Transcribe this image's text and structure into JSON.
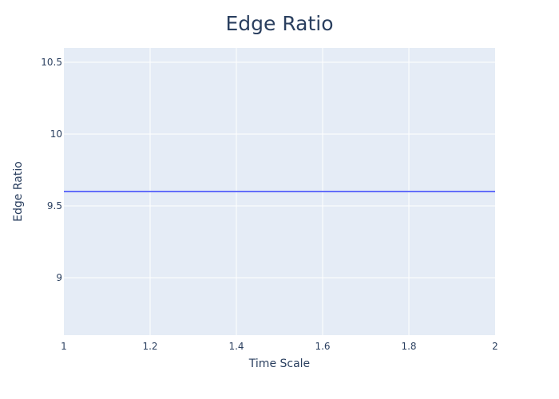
{
  "chart_data": {
    "type": "line",
    "title": "Edge Ratio",
    "xlabel": "Time Scale",
    "ylabel": "Edge Ratio",
    "xlim": [
      1,
      2
    ],
    "ylim": [
      8.6,
      10.6
    ],
    "x_ticks": [
      1,
      1.2,
      1.4,
      1.6,
      1.8,
      2
    ],
    "x_tick_labels": [
      "1",
      "1.2",
      "1.4",
      "1.6",
      "1.8",
      "2"
    ],
    "y_ticks": [
      9,
      9.5,
      10,
      10.5
    ],
    "y_tick_labels": [
      "9",
      "9.5",
      "10",
      "10.5"
    ],
    "grid": true,
    "legend": "none",
    "colors": {
      "plot_bg": "#e5ecf6",
      "grid": "#ffffff",
      "line": "#636efa",
      "text": "#2a3f5f"
    },
    "series": [
      {
        "x": [
          1,
          2
        ],
        "y": [
          9.6,
          9.6
        ]
      }
    ]
  }
}
